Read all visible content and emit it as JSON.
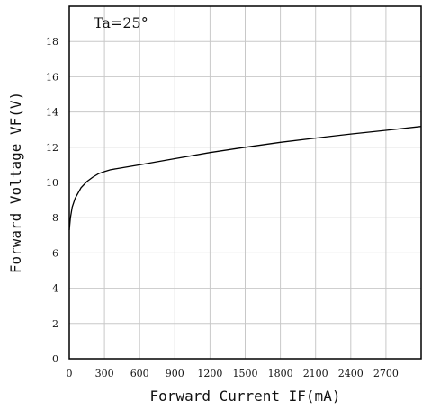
{
  "chart_data": {
    "type": "line",
    "title": "",
    "annotation": "Ta=25°",
    "xlabel": "Forward Current IF(mA)",
    "ylabel": "Forward Voltage VF(V)",
    "xlim": [
      0,
      3000
    ],
    "ylim": [
      0,
      20
    ],
    "x_ticks": [
      0,
      300,
      600,
      900,
      1200,
      1500,
      1800,
      2100,
      2400,
      2700
    ],
    "y_ticks": [
      0,
      2,
      4,
      6,
      8,
      10,
      12,
      14,
      16,
      18
    ],
    "grid": true,
    "series": [
      {
        "x": [
          0,
          10,
          25,
          50,
          100,
          150,
          200,
          250,
          300,
          350,
          400,
          600,
          900,
          1200,
          1500,
          1800,
          2100,
          2400,
          2700,
          3000
        ],
        "y": [
          7.3,
          8.0,
          8.6,
          9.1,
          9.7,
          10.05,
          10.3,
          10.5,
          10.62,
          10.72,
          10.78,
          11.0,
          11.35,
          11.7,
          12.0,
          12.28,
          12.52,
          12.75,
          12.96,
          13.18
        ]
      }
    ]
  }
}
